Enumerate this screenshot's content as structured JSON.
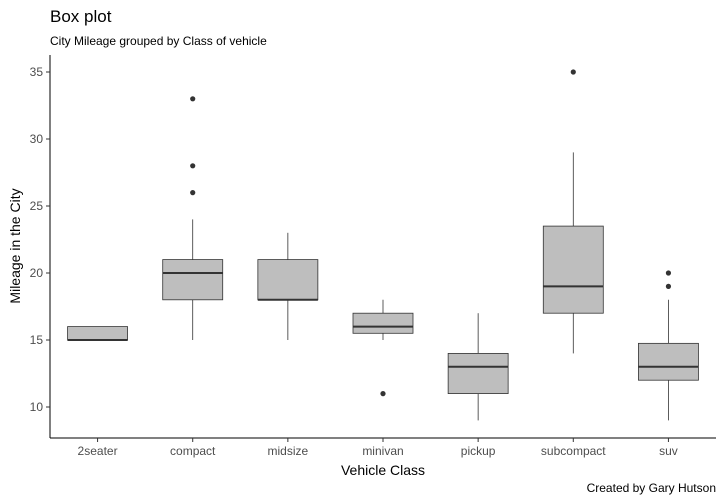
{
  "chart_data": {
    "type": "box",
    "title": "Box plot",
    "subtitle": "City Mileage grouped by Class of vehicle",
    "caption": "Created by Gary Hutson",
    "xlabel": "Vehicle Class",
    "ylabel": "Mileage in the City",
    "ylim": [
      7.8,
      36.3
    ],
    "yticks": [
      10,
      15,
      20,
      25,
      30,
      35
    ],
    "grid": false,
    "box_fill": "#bebebe",
    "categories": [
      "2seater",
      "compact",
      "midsize",
      "minivan",
      "pickup",
      "subcompact",
      "suv"
    ],
    "boxes": [
      {
        "min": 15,
        "q1": 15,
        "median": 15,
        "q3": 16,
        "max": 16,
        "outliers": []
      },
      {
        "min": 15,
        "q1": 18,
        "median": 20,
        "q3": 21,
        "max": 24,
        "outliers": [
          26,
          28,
          33
        ]
      },
      {
        "min": 15,
        "q1": 18,
        "median": 18,
        "q3": 21,
        "max": 23,
        "outliers": []
      },
      {
        "min": 15,
        "q1": 15.5,
        "median": 16,
        "q3": 17,
        "max": 18,
        "outliers": [
          11
        ]
      },
      {
        "min": 9,
        "q1": 11,
        "median": 13,
        "q3": 14,
        "max": 17,
        "outliers": []
      },
      {
        "min": 14,
        "q1": 17,
        "median": 19,
        "q3": 23.5,
        "max": 29,
        "outliers": [
          35
        ]
      },
      {
        "min": 9,
        "q1": 12,
        "median": 13,
        "q3": 14.75,
        "max": 18,
        "outliers": [
          19,
          20
        ]
      }
    ]
  }
}
